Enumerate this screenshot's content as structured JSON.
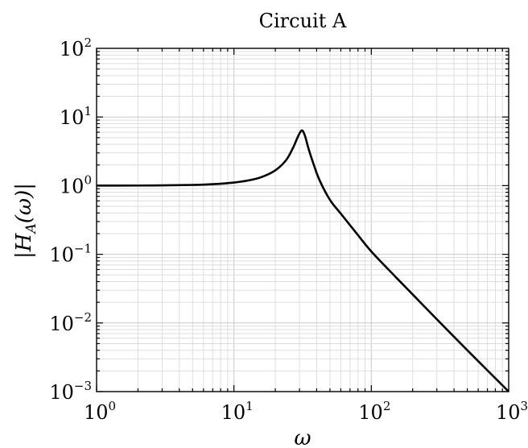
{
  "chart_data": {
    "type": "line",
    "title": "Circuit A",
    "xlabel": "ω",
    "ylabel": "|H",
    "ylabel_sub": "A",
    "ylabel_tail": "(ω)|",
    "xscale": "log",
    "yscale": "log",
    "xlim": [
      1,
      1000
    ],
    "ylim": [
      0.001,
      100
    ],
    "grid": true,
    "x_ticks": [
      {
        "base": "10",
        "exp": "0",
        "value": 1
      },
      {
        "base": "10",
        "exp": "1",
        "value": 10
      },
      {
        "base": "10",
        "exp": "2",
        "value": 100
      },
      {
        "base": "10",
        "exp": "3",
        "value": 1000
      }
    ],
    "y_ticks": [
      {
        "base": "10",
        "exp": "−3",
        "value": 0.001
      },
      {
        "base": "10",
        "exp": "−2",
        "value": 0.01
      },
      {
        "base": "10",
        "exp": "−1",
        "value": 0.1
      },
      {
        "base": "10",
        "exp": "0",
        "value": 1
      },
      {
        "base": "10",
        "exp": "1",
        "value": 10
      },
      {
        "base": "10",
        "exp": "2",
        "value": 100
      }
    ],
    "series": [
      {
        "x": [
          1,
          2,
          3,
          5,
          7,
          10,
          13,
          16,
          20,
          24,
          27,
          29,
          30.5,
          31.6,
          33,
          35,
          38,
          42,
          50,
          60,
          80,
          100,
          150,
          200,
          300,
          500,
          700,
          1000
        ],
        "y": [
          1.001,
          1.004,
          1.009,
          1.025,
          1.05,
          1.11,
          1.2,
          1.34,
          1.67,
          2.36,
          3.6,
          5.0,
          6.1,
          6.3,
          5.2,
          3.4,
          2.05,
          1.2,
          0.62,
          0.39,
          0.19,
          0.11,
          0.047,
          0.026,
          0.0113,
          0.004,
          0.00204,
          0.001
        ]
      }
    ]
  }
}
